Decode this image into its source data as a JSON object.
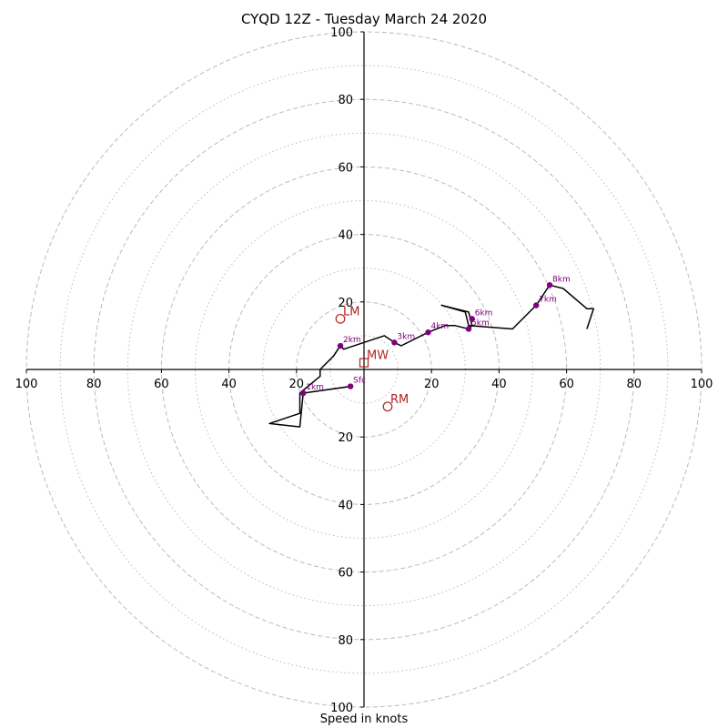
{
  "chart_data": {
    "type": "scatter",
    "title": "CYQD 12Z - Tuesday March 24 2020",
    "xlabel": "Speed in knots",
    "ylabel": "",
    "grid": true,
    "xlim": [
      -100,
      100
    ],
    "ylim": [
      -100,
      100
    ],
    "x_tick_labels": [
      "100",
      "80",
      "60",
      "40",
      "20",
      "",
      "20",
      "40",
      "60",
      "80",
      "100"
    ],
    "x_tick_values": [
      -100,
      -80,
      -60,
      -40,
      -20,
      0,
      20,
      40,
      60,
      80,
      100
    ],
    "y_tick_labels": [
      "100",
      "80",
      "60",
      "40",
      "20",
      "20",
      "40",
      "60",
      "80",
      "100"
    ],
    "y_tick_values": [
      100,
      80,
      60,
      40,
      20,
      -20,
      -40,
      -60,
      -80,
      -100
    ],
    "rings_dashed": [
      20,
      40,
      60,
      80,
      100
    ],
    "rings_dotted": [
      10,
      30,
      50,
      70,
      90
    ],
    "colors": {
      "hodograph": "#000000",
      "height_marker": "#800080",
      "motion": "#b22222",
      "grid": "#bbbbbb"
    },
    "hodograph": [
      [
        -4,
        -5
      ],
      [
        -18,
        -7
      ],
      [
        -19,
        -17
      ],
      [
        -28,
        -16
      ],
      [
        -19,
        -13
      ],
      [
        -19,
        -7
      ],
      [
        -13,
        -2
      ],
      [
        -13,
        0
      ],
      [
        -9,
        4
      ],
      [
        -7,
        7
      ],
      [
        -6,
        6
      ],
      [
        6,
        10
      ],
      [
        9,
        8
      ],
      [
        11,
        7
      ],
      [
        19,
        11
      ],
      [
        24,
        13
      ],
      [
        27,
        13
      ],
      [
        31,
        12
      ],
      [
        32,
        13
      ],
      [
        31,
        17
      ],
      [
        23,
        19
      ],
      [
        30,
        17
      ],
      [
        31,
        13
      ],
      [
        44,
        12
      ],
      [
        49,
        17
      ],
      [
        51,
        19
      ],
      [
        55,
        25
      ],
      [
        59,
        24
      ],
      [
        66,
        18
      ],
      [
        68,
        18
      ],
      [
        66,
        12
      ]
    ],
    "height_markers": [
      {
        "label": "Sfc",
        "x": -4,
        "y": -5
      },
      {
        "label": "1km",
        "x": -18,
        "y": -7
      },
      {
        "label": "2km",
        "x": -7,
        "y": 7
      },
      {
        "label": "3km",
        "x": 9,
        "y": 8
      },
      {
        "label": "4km",
        "x": 19,
        "y": 11
      },
      {
        "label": "5km",
        "x": 31,
        "y": 12
      },
      {
        "label": "6km",
        "x": 32,
        "y": 15
      },
      {
        "label": "7km",
        "x": 51,
        "y": 19
      },
      {
        "label": "8km",
        "x": 55,
        "y": 25
      }
    ],
    "storm_motion": [
      {
        "label": "LM",
        "x": -7,
        "y": 15,
        "marker": "circle"
      },
      {
        "label": "RM",
        "x": 7,
        "y": -11,
        "marker": "circle"
      },
      {
        "label": "MW",
        "x": 0,
        "y": 2,
        "marker": "square"
      }
    ]
  }
}
